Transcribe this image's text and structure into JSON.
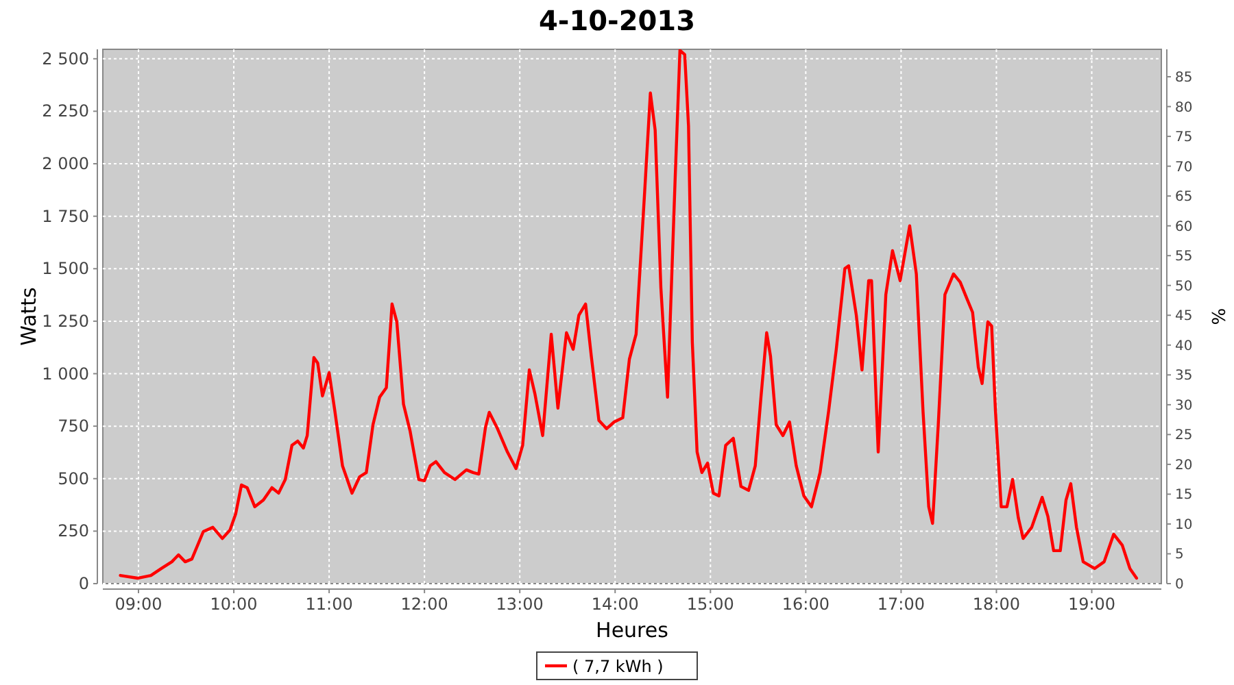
{
  "chart_data": {
    "type": "line",
    "title": "4-10-2013",
    "xlabel": "Heures",
    "ylabel": "Watts",
    "y2label": "%",
    "xlim": [
      8.626,
      19.73
    ],
    "xticks": [
      {
        "value": 9,
        "label": "09:00"
      },
      {
        "value": 10,
        "label": "10:00"
      },
      {
        "value": 11,
        "label": "11:00"
      },
      {
        "value": 12,
        "label": "12:00"
      },
      {
        "value": 13,
        "label": "13:00"
      },
      {
        "value": 14,
        "label": "14:00"
      },
      {
        "value": 15,
        "label": "15:00"
      },
      {
        "value": 16,
        "label": "16:00"
      },
      {
        "value": 17,
        "label": "17:00"
      },
      {
        "value": 18,
        "label": "18:00"
      },
      {
        "value": 19,
        "label": "19:00"
      }
    ],
    "ylim": [
      0,
      2545
    ],
    "yticks": [
      0,
      250,
      500,
      750,
      {
        "value": 1000,
        "label": "1 000"
      },
      {
        "value": 1250,
        "label": "1 250"
      },
      {
        "value": 1500,
        "label": "1 500"
      },
      {
        "value": 1750,
        "label": "1 750"
      },
      {
        "value": 2000,
        "label": "2 000"
      },
      {
        "value": 2250,
        "label": "2 250"
      },
      {
        "value": 2500,
        "label": "2 500"
      }
    ],
    "y2lim": [
      0,
      89.6
    ],
    "y2ticks": [
      0,
      5,
      10,
      15,
      20,
      25,
      30,
      35,
      40,
      45,
      50,
      55,
      60,
      65,
      70,
      75,
      80,
      85
    ],
    "grid": true,
    "legend": "bottom",
    "marker": "none",
    "line_style": "solid",
    "series": [
      {
        "name": "( 7,7 kWh )",
        "color": "#ff0000",
        "x": [
          8.81,
          8.99,
          9.13,
          9.24,
          9.35,
          9.42,
          9.49,
          9.56,
          9.68,
          9.78,
          9.88,
          9.96,
          10.02,
          10.08,
          10.14,
          10.22,
          10.31,
          10.4,
          10.47,
          10.54,
          10.61,
          10.67,
          10.73,
          10.77,
          10.84,
          10.88,
          10.93,
          11.0,
          11.06,
          11.14,
          11.24,
          11.32,
          11.39,
          11.46,
          11.53,
          11.6,
          11.66,
          11.71,
          11.78,
          11.85,
          11.94,
          12.0,
          12.06,
          12.12,
          12.21,
          12.32,
          12.44,
          12.51,
          12.57,
          12.64,
          12.68,
          12.76,
          12.87,
          12.96,
          13.03,
          13.1,
          13.16,
          13.24,
          13.33,
          13.4,
          13.49,
          13.56,
          13.62,
          13.69,
          13.75,
          13.83,
          13.91,
          13.99,
          14.08,
          14.15,
          14.22,
          14.31,
          14.37,
          14.42,
          14.48,
          14.55,
          14.63,
          14.68,
          14.73,
          14.77,
          14.81,
          14.86,
          14.91,
          14.97,
          15.03,
          15.09,
          15.16,
          15.24,
          15.32,
          15.4,
          15.47,
          15.53,
          15.59,
          15.63,
          15.69,
          15.76,
          15.83,
          15.9,
          15.98,
          16.06,
          16.15,
          16.24,
          16.32,
          16.41,
          16.45,
          16.53,
          16.59,
          16.66,
          16.69,
          16.76,
          16.84,
          16.91,
          16.99,
          17.09,
          17.16,
          17.23,
          17.29,
          17.33,
          17.39,
          17.46,
          17.55,
          17.62,
          17.69,
          17.75,
          17.81,
          17.85,
          17.91,
          17.95,
          17.99,
          18.05,
          18.11,
          18.17,
          18.23,
          18.28,
          18.37,
          18.48,
          18.54,
          18.6,
          18.67,
          18.73,
          18.78,
          18.84,
          18.91,
          19.03,
          19.13,
          19.23,
          19.32,
          19.4,
          19.47
        ],
        "values": [
          39,
          26,
          39,
          72,
          104,
          137,
          104,
          117,
          248,
          268,
          215,
          255,
          333,
          470,
          457,
          366,
          398,
          457,
          431,
          496,
          659,
          679,
          646,
          705,
          1077,
          1051,
          894,
          1005,
          822,
          561,
          431,
          509,
          529,
          757,
          888,
          933,
          1332,
          1247,
          855,
          725,
          496,
          490,
          561,
          581,
          529,
          496,
          542,
          529,
          522,
          744,
          816,
          744,
          627,
          548,
          659,
          1018,
          901,
          705,
          1188,
          836,
          1195,
          1116,
          1279,
          1332,
          1084,
          777,
          738,
          770,
          790,
          1070,
          1188,
          1867,
          2337,
          2161,
          1410,
          888,
          1932,
          2540,
          2520,
          2180,
          1149,
          627,
          529,
          574,
          431,
          418,
          659,
          692,
          463,
          444,
          561,
          888,
          1195,
          1084,
          757,
          705,
          770,
          561,
          418,
          366,
          529,
          822,
          1116,
          1501,
          1514,
          1279,
          1018,
          1443,
          1443,
          627,
          1377,
          1586,
          1443,
          1704,
          1475,
          822,
          366,
          287,
          757,
          1377,
          1475,
          1436,
          1358,
          1292,
          1031,
          953,
          1247,
          1227,
          822,
          366,
          366,
          496,
          313,
          215,
          268,
          411,
          320,
          157,
          157,
          398,
          476,
          268,
          104,
          72,
          104,
          235,
          183,
          72,
          26
        ]
      }
    ]
  }
}
